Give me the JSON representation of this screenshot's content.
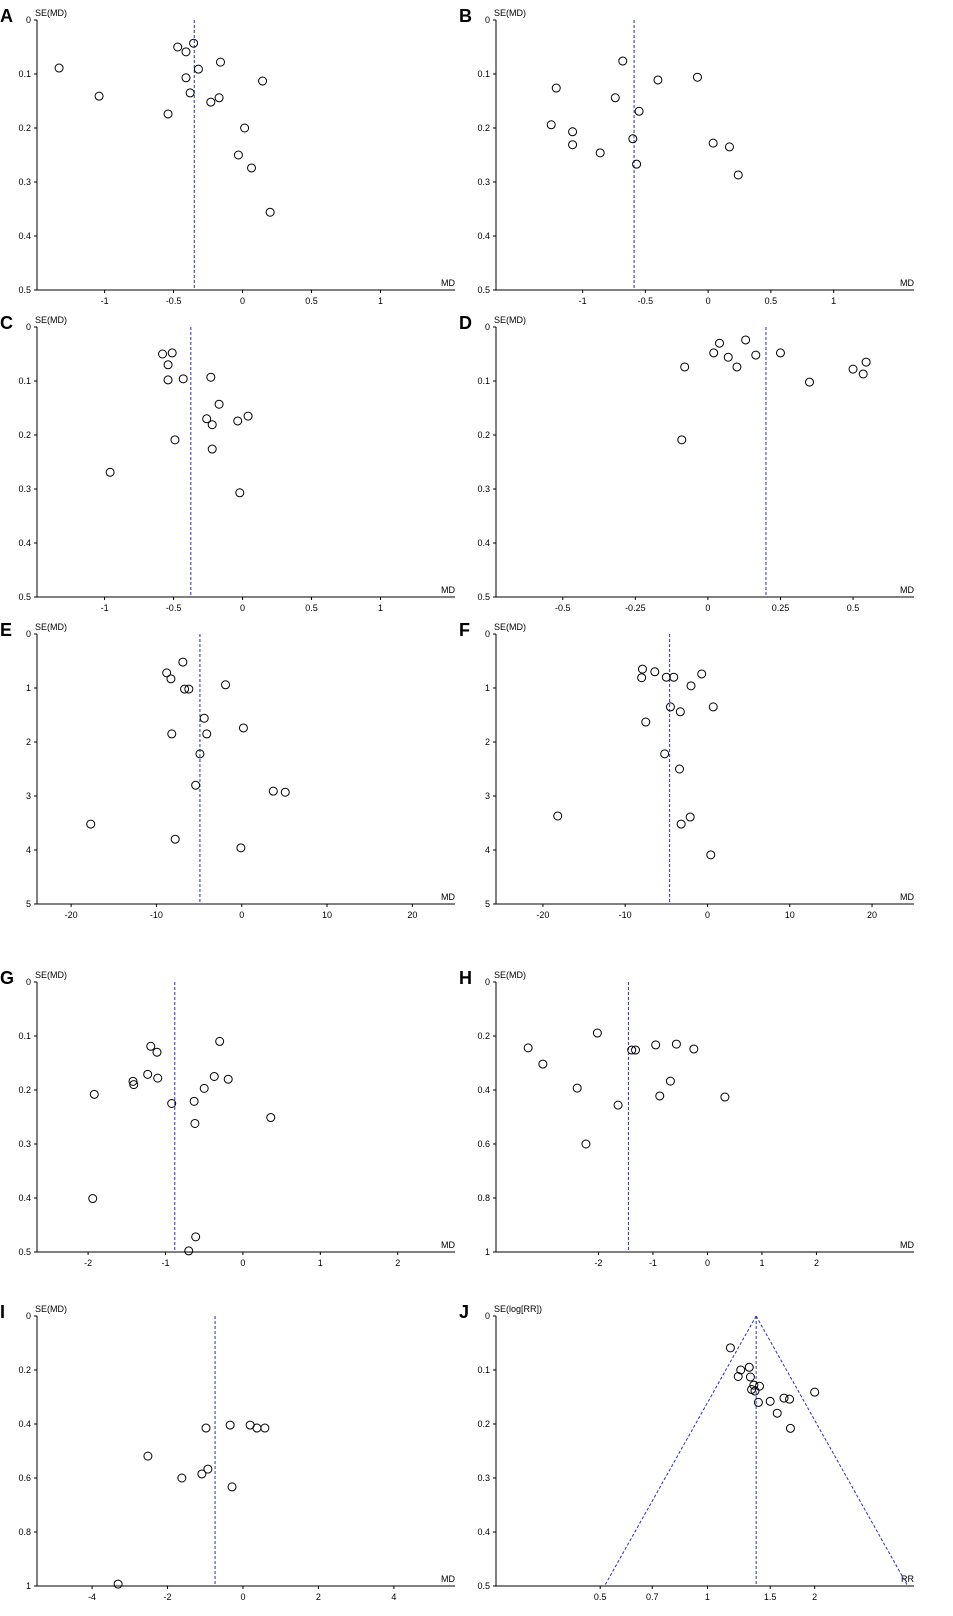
{
  "chart_data": [
    {
      "type": "scatter",
      "panel": "A",
      "y_label": "SE(MD)",
      "x_label": "MD",
      "y_inverted": true,
      "marker_color": "#000000",
      "line_color": "#2b2bd0",
      "pooled": -0.35,
      "x": [
        -1.33,
        -1.04,
        -0.47,
        -0.41,
        -0.355,
        -0.32,
        -0.16,
        -0.41,
        -0.38,
        -0.54,
        -0.23,
        -0.17,
        0.145,
        0.015,
        -0.03,
        0.065,
        0.2
      ],
      "values": [
        0.089,
        0.141,
        0.05,
        0.059,
        0.043,
        0.091,
        0.078,
        0.107,
        0.135,
        0.174,
        0.152,
        0.144,
        0.113,
        0.2,
        0.25,
        0.274,
        0.356
      ],
      "xlim": [
        -1.49,
        1.54
      ],
      "ylim": [
        0,
        0.5
      ],
      "xticks": [
        -1,
        -0.5,
        0,
        0.5,
        1
      ],
      "yticks": [
        0,
        0.1,
        0.2,
        0.3,
        0.4,
        0.5
      ]
    },
    {
      "type": "scatter",
      "panel": "B",
      "y_label": "SE(MD)",
      "x_label": "MD",
      "y_inverted": true,
      "marker_color": "#000000",
      "line_color": "#2b2bd0",
      "pooled": -0.59,
      "x": [
        -0.68,
        -1.21,
        -0.4,
        -0.085,
        -0.74,
        -0.55,
        -1.25,
        -1.08,
        -1.08,
        -0.86,
        -0.6,
        -0.57,
        0.04,
        0.17,
        0.24
      ],
      "values": [
        0.076,
        0.126,
        0.111,
        0.106,
        0.144,
        0.169,
        0.194,
        0.207,
        0.231,
        0.246,
        0.22,
        0.267,
        0.228,
        0.235,
        0.287
      ],
      "xlim": [
        -1.69,
        1.64
      ],
      "ylim": [
        0,
        0.5
      ],
      "xticks": [
        -1,
        -0.5,
        0,
        0.5,
        1
      ],
      "yticks": [
        0,
        0.1,
        0.2,
        0.3,
        0.4,
        0.5
      ]
    },
    {
      "type": "scatter",
      "panel": "C",
      "y_label": "SE(MD)",
      "x_label": "MD",
      "y_inverted": true,
      "marker_color": "#000000",
      "line_color": "#2b2bd0",
      "pooled": -0.375,
      "x": [
        -0.58,
        -0.51,
        -0.54,
        -0.54,
        -0.43,
        -0.23,
        -0.17,
        -0.26,
        -0.22,
        0.04,
        -0.035,
        -0.49,
        -0.22,
        -0.96,
        -0.02
      ],
      "values": [
        0.05,
        0.048,
        0.07,
        0.098,
        0.096,
        0.093,
        0.143,
        0.17,
        0.181,
        0.165,
        0.174,
        0.209,
        0.226,
        0.269,
        0.307
      ],
      "xlim": [
        -1.49,
        1.54
      ],
      "ylim": [
        0,
        0.5
      ],
      "xticks": [
        -1,
        -0.5,
        0,
        0.5,
        1
      ],
      "yticks": [
        0,
        0.1,
        0.2,
        0.3,
        0.4,
        0.5
      ]
    },
    {
      "type": "scatter",
      "panel": "D",
      "y_label": "SE(MD)",
      "x_label": "MD",
      "y_inverted": true,
      "marker_color": "#000000",
      "line_color": "#2b2bd0",
      "pooled": 0.2,
      "x": [
        -0.08,
        0.04,
        0.13,
        0.02,
        0.07,
        0.1,
        0.165,
        0.25,
        0.35,
        0.5,
        0.545,
        0.535,
        -0.09
      ],
      "values": [
        0.074,
        0.03,
        0.024,
        0.048,
        0.056,
        0.074,
        0.052,
        0.048,
        0.102,
        0.078,
        0.065,
        0.087,
        0.209
      ],
      "xlim": [
        -0.73,
        0.71
      ],
      "ylim": [
        0,
        0.5
      ],
      "xticks": [
        -0.5,
        -0.25,
        0,
        0.25,
        0.5
      ],
      "yticks": [
        0,
        0.1,
        0.2,
        0.3,
        0.4,
        0.5
      ]
    },
    {
      "type": "scatter",
      "panel": "E",
      "y_label": "SE(MD)",
      "x_label": "MD",
      "y_inverted": true,
      "marker_color": "#000000",
      "line_color": "#2b2bd0",
      "pooled": -4.9,
      "x": [
        -6.9,
        -8.8,
        -8.3,
        -6.7,
        -6.2,
        -1.9,
        -4.4,
        -4.1,
        -8.2,
        0.2,
        -4.9,
        -5.4,
        3.7,
        5.1,
        -17.7,
        -7.8,
        -0.1
      ],
      "values": [
        0.52,
        0.72,
        0.83,
        1.02,
        1.02,
        0.94,
        1.56,
        1.85,
        1.85,
        1.74,
        2.22,
        2.8,
        2.91,
        2.93,
        3.52,
        3.8,
        3.96
      ],
      "xlim": [
        -24,
        25
      ],
      "ylim": [
        0,
        5
      ],
      "xticks": [
        -20,
        -10,
        0,
        10,
        20
      ],
      "yticks": [
        0,
        1,
        2,
        3,
        4,
        5
      ]
    },
    {
      "type": "scatter",
      "panel": "F",
      "y_label": "SE(MD)",
      "x_label": "MD",
      "y_inverted": true,
      "marker_color": "#000000",
      "line_color": "#2b2bd0",
      "pooled": -4.6,
      "x": [
        -7.9,
        -6.4,
        -8.0,
        -5.0,
        -4.1,
        -0.7,
        -2.0,
        -4.5,
        -3.3,
        0.7,
        -7.5,
        -5.2,
        -3.4,
        -2.1,
        -3.2,
        -18.2,
        0.4
      ],
      "values": [
        0.65,
        0.7,
        0.81,
        0.8,
        0.8,
        0.74,
        0.96,
        1.35,
        1.44,
        1.35,
        1.63,
        2.22,
        2.5,
        3.39,
        3.52,
        3.37,
        4.09
      ],
      "xlim": [
        -25.7,
        25.1
      ],
      "ylim": [
        0,
        5
      ],
      "xticks": [
        -20,
        -10,
        0,
        10,
        20
      ],
      "yticks": [
        0,
        1,
        2,
        3,
        4,
        5
      ]
    },
    {
      "type": "scatter",
      "panel": "G",
      "y_label": "SE(MD)",
      "x_label": "MD",
      "y_inverted": true,
      "marker_color": "#000000",
      "line_color": "#2b2bd0",
      "pooled": -0.88,
      "x": [
        -0.3,
        -1.19,
        -1.11,
        -1.23,
        -1.1,
        -1.42,
        -1.41,
        -0.37,
        -0.19,
        -0.5,
        -1.92,
        -0.92,
        -0.63,
        0.36,
        -0.62,
        -1.94,
        -0.61,
        -0.7
      ],
      "values": [
        0.11,
        0.119,
        0.13,
        0.171,
        0.178,
        0.184,
        0.19,
        0.175,
        0.18,
        0.197,
        0.208,
        0.225,
        0.221,
        0.251,
        0.262,
        0.401,
        0.472,
        0.498
      ],
      "xlim": [
        -2.66,
        2.74
      ],
      "ylim": [
        0,
        0.5
      ],
      "xticks": [
        -2,
        -1,
        0,
        1,
        2
      ],
      "yticks": [
        0,
        0.1,
        0.2,
        0.3,
        0.4,
        0.5
      ]
    },
    {
      "type": "scatter",
      "panel": "H",
      "y_label": "SE(MD)",
      "x_label": "MD",
      "y_inverted": true,
      "marker_color": "#000000",
      "line_color": "#2b2bd0",
      "pooled": -1.45,
      "x": [
        -3.29,
        -3.02,
        -2.02,
        -1.39,
        -1.32,
        -0.95,
        -0.57,
        -0.25,
        -2.39,
        -0.68,
        -0.875,
        0.32,
        -1.64,
        -2.23
      ],
      "values": [
        0.244,
        0.304,
        0.189,
        0.252,
        0.252,
        0.233,
        0.23,
        0.248,
        0.393,
        0.367,
        0.422,
        0.426,
        0.456,
        0.6
      ],
      "xlim": [
        -3.88,
        3.79
      ],
      "ylim": [
        0,
        1
      ],
      "xticks": [
        -2,
        -1,
        0,
        1,
        2
      ],
      "yticks": [
        0,
        0.2,
        0.4,
        0.6,
        0.8,
        1
      ]
    },
    {
      "type": "scatter",
      "panel": "I",
      "y_label": "SE(MD)",
      "x_label": "MD",
      "y_inverted": true,
      "marker_color": "#000000",
      "line_color": "#2b2bd0",
      "pooled": -0.74,
      "x": [
        -0.98,
        -0.34,
        0.19,
        0.37,
        0.58,
        -2.52,
        -1.62,
        -0.93,
        -1.09,
        -0.29,
        -3.31
      ],
      "values": [
        0.415,
        0.404,
        0.404,
        0.415,
        0.415,
        0.519,
        0.6,
        0.567,
        0.585,
        0.633,
        0.993
      ],
      "xlim": [
        -5.46,
        5.62
      ],
      "ylim": [
        0,
        1
      ],
      "xticks": [
        -4,
        -2,
        0,
        2,
        4
      ],
      "yticks": [
        0,
        0.2,
        0.4,
        0.6,
        0.8,
        1
      ]
    },
    {
      "type": "scatter",
      "panel": "J",
      "y_label": "SE(log[RR])",
      "x_label": "RR",
      "y_inverted": true,
      "x_scale": "log",
      "funnel": true,
      "marker_color": "#000000",
      "line_color": "#2b2bd0",
      "pooled": 1.37,
      "x": [
        1.16,
        1.24,
        1.22,
        1.31,
        1.32,
        1.35,
        1.33,
        1.4,
        1.36,
        1.39,
        1.5,
        1.64,
        1.7,
        1.57,
        1.71,
        2.0
      ],
      "values": [
        0.059,
        0.1,
        0.112,
        0.095,
        0.113,
        0.128,
        0.136,
        0.13,
        0.139,
        0.16,
        0.158,
        0.152,
        0.154,
        0.18,
        0.208,
        0.141
      ],
      "xlim": [
        0.255,
        3.8
      ],
      "ylim": [
        0,
        0.5
      ],
      "xticks": [
        0.5,
        0.7,
        1,
        1.5,
        2
      ],
      "yticks": [
        0,
        0.1,
        0.2,
        0.3,
        0.4,
        0.5
      ]
    }
  ]
}
